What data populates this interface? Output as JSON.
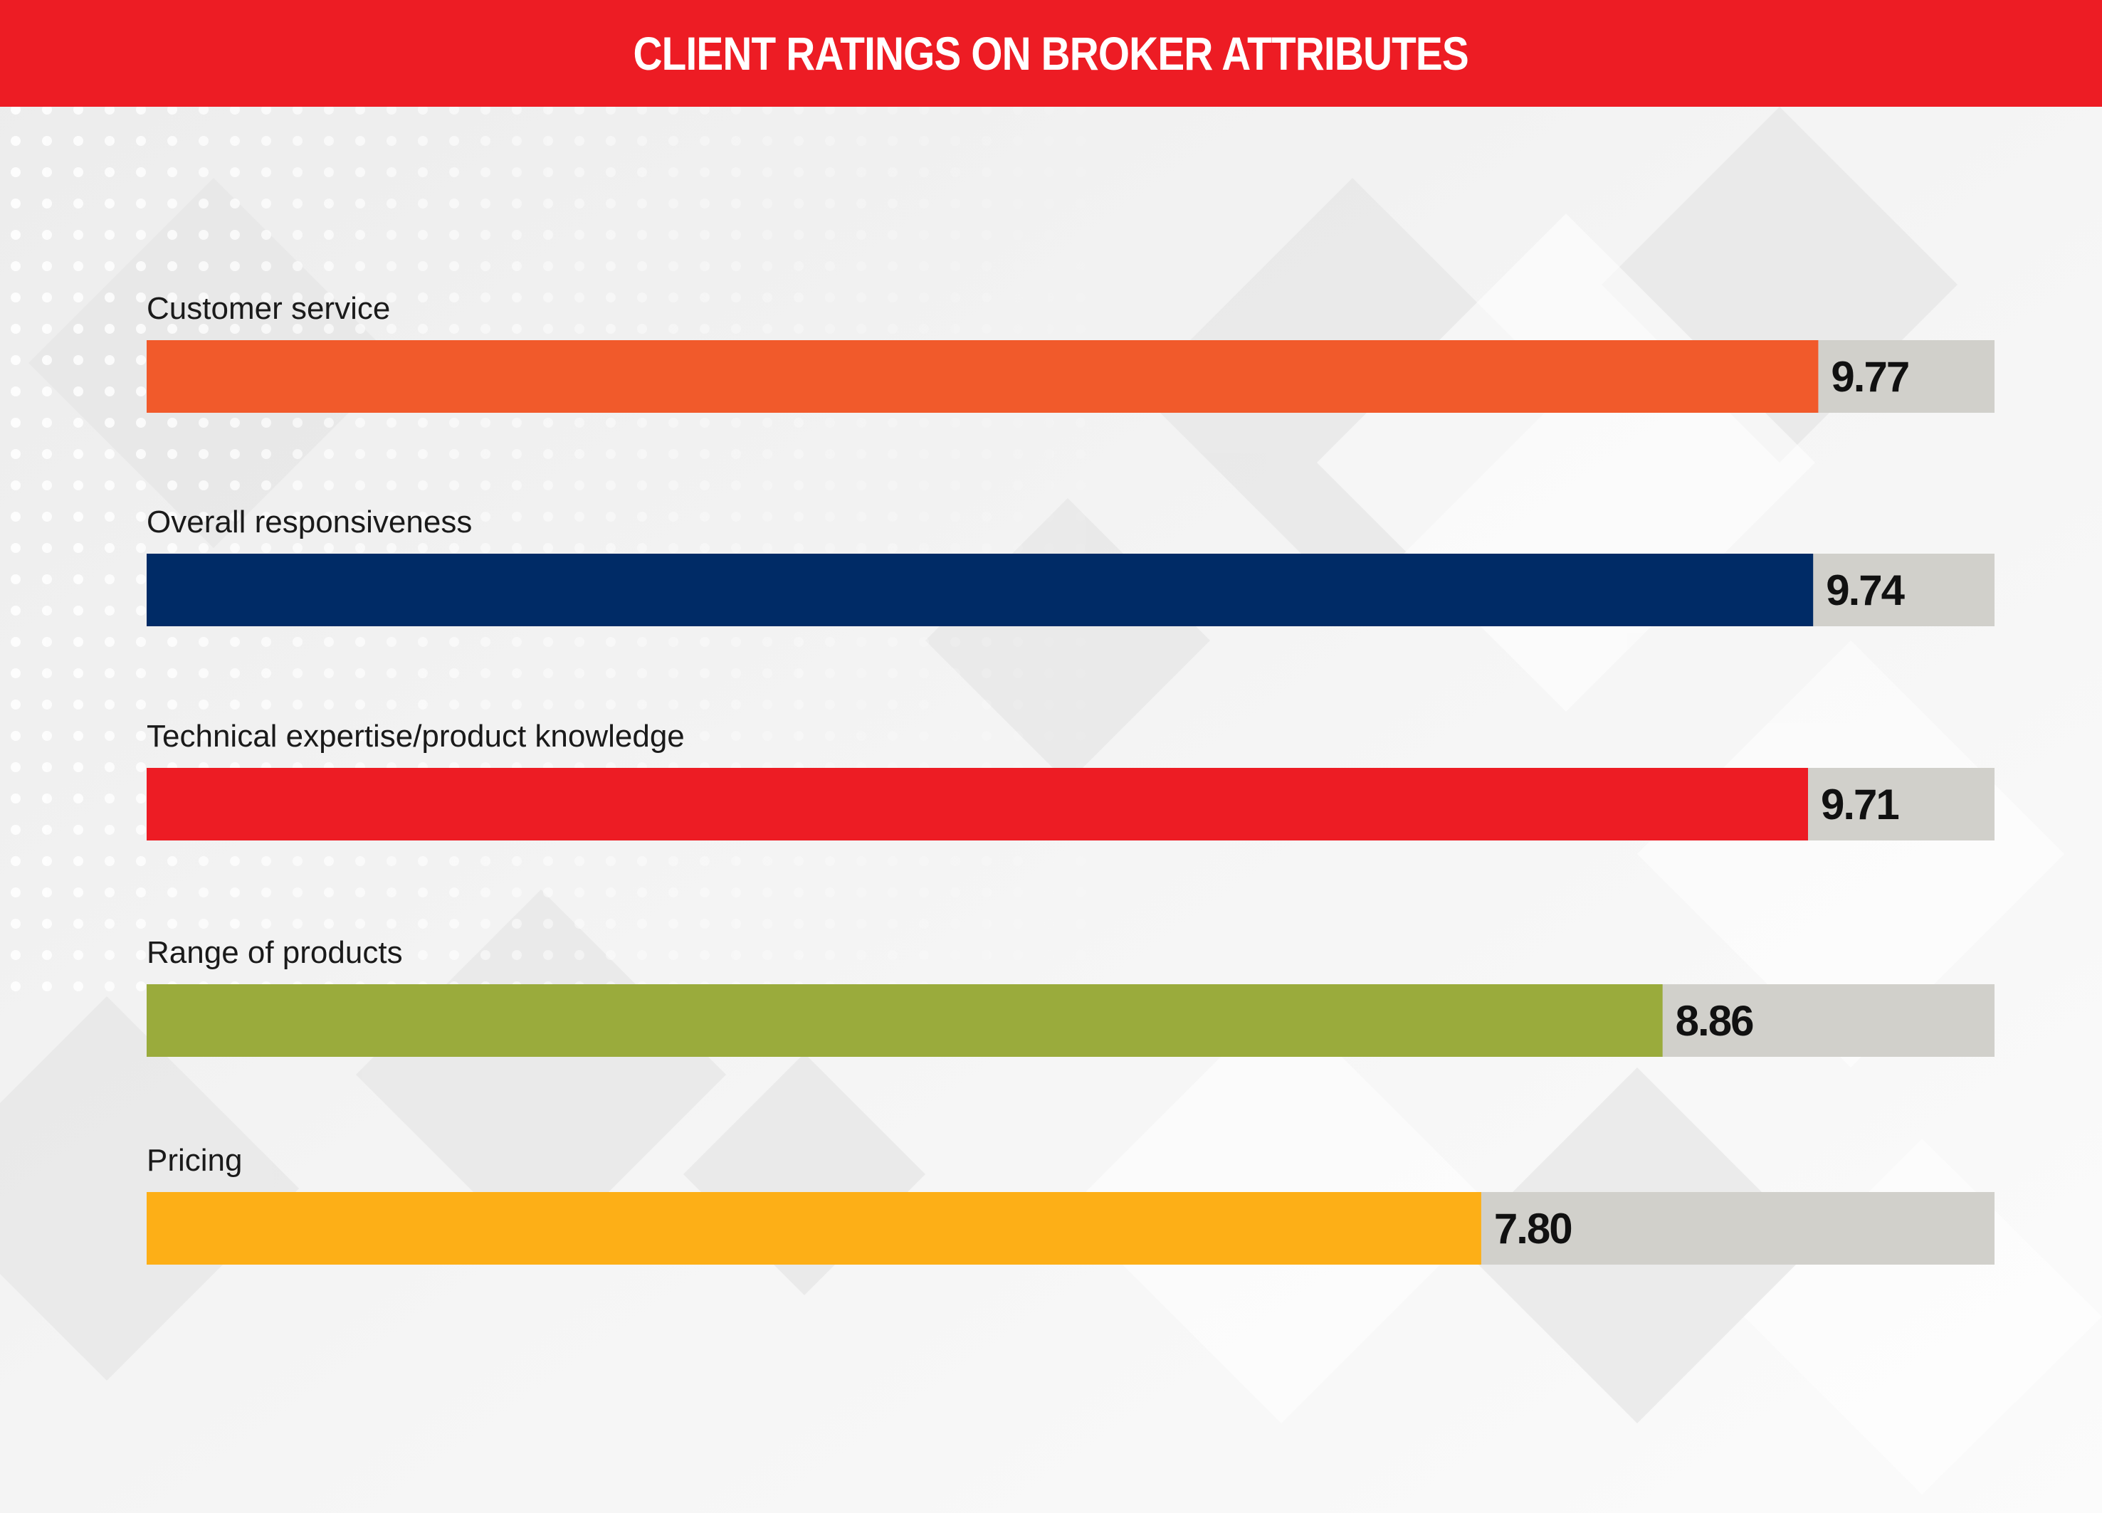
{
  "header": {
    "title": "CLIENT RATINGS ON BROKER ATTRIBUTES"
  },
  "colors": {
    "header_bg": "#ed1c24",
    "track": "#d1d0cb",
    "background": "#f2f2f2"
  },
  "chart_data": {
    "type": "bar",
    "orientation": "horizontal",
    "title": "CLIENT RATINGS ON BROKER ATTRIBUTES",
    "xlim": [
      0,
      10.8
    ],
    "grid": false,
    "categories": [
      "Customer service",
      "Overall responsiveness",
      "Technical expertise/product knowledge",
      "Range of products",
      "Pricing"
    ],
    "values": [
      9.77,
      9.74,
      9.71,
      8.86,
      7.8
    ],
    "value_labels": [
      "9.77",
      "9.74",
      "9.71",
      "8.86",
      "7.80"
    ],
    "bar_colors": [
      "#f15a2b",
      "#002b66",
      "#ed1c24",
      "#9aab3c",
      "#fdaf17"
    ]
  }
}
